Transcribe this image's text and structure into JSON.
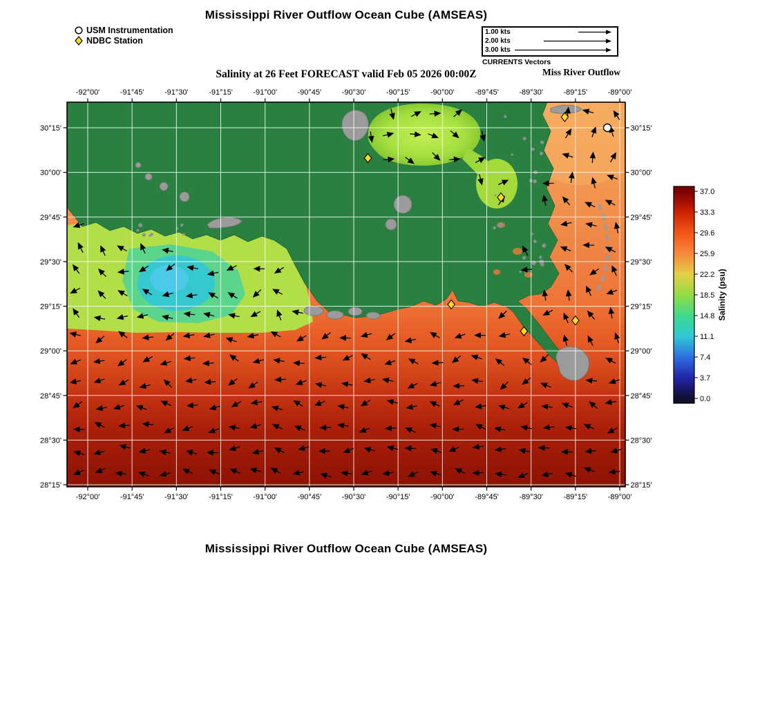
{
  "title": "Mississippi River Outflow Ocean Cube (AMSEAS)",
  "subtitle": "Salinity at 26 Feet FORECAST valid Feb 05 2026 00:00Z",
  "footer_title": "Mississippi River Outflow Ocean Cube (AMSEAS)",
  "marker_legend": {
    "usm": "USM Instrumentation",
    "ndbc": "NDBC Station"
  },
  "vector_legend": {
    "rows": [
      {
        "label": "1.00 kts",
        "len": 48
      },
      {
        "label": "2.00 kts",
        "len": 98
      },
      {
        "label": "3.00 kts",
        "len": 140
      }
    ],
    "caption": "CURRENTS Vectors",
    "annotation": "Miss River Outflow"
  },
  "axes": {
    "x_ticks": [
      "-92°00'",
      "-91°45'",
      "-91°30'",
      "-91°15'",
      "-91°00'",
      "-90°45'",
      "-90°30'",
      "-90°15'",
      "-90°00'",
      "-89°45'",
      "-89°30'",
      "-89°15'",
      "-89°00'"
    ],
    "y_ticks": [
      "30°15'",
      "30°00'",
      "29°45'",
      "29°30'",
      "29°15'",
      "29°00'",
      "28°45'",
      "28°30'",
      "28°15'"
    ]
  },
  "colorbar": {
    "label": "Salinity (psu)",
    "ticks": [
      "37.0",
      "33.3",
      "29.6",
      "25.9",
      "22.2",
      "18.5",
      "14.8",
      "11.1",
      "7.4",
      "3.7",
      "0.0"
    ],
    "colors": [
      "#7c0103",
      "#cc2000",
      "#f25518",
      "#f9883a",
      "#e5cf45",
      "#93dc45",
      "#3ed98c",
      "#2fc9d4",
      "#2e6ee0",
      "#2224a8",
      "#10102e"
    ]
  },
  "map": {
    "colors": {
      "land": "#2a8041",
      "island": "#9b9b9b",
      "ndbc_marker": "#ffd920",
      "usm_marker": "#ffffff"
    }
  },
  "chart_data": {
    "type": "heatmap",
    "title": "Salinity at 26 Feet FORECAST valid Feb 05 2026 00:00Z",
    "xlim": [
      -92.12,
      -88.97
    ],
    "ylim": [
      28.24,
      30.39
    ],
    "x_ticks_deg": [
      -92.0,
      -91.75,
      -91.5,
      -91.25,
      -91.0,
      -90.75,
      -90.5,
      -90.25,
      -90.0,
      -89.75,
      -89.5,
      -89.25,
      -89.0
    ],
    "y_ticks_deg": [
      30.25,
      30.0,
      29.75,
      29.5,
      29.25,
      29.0,
      28.75,
      28.5,
      28.25
    ],
    "colorbar_label": "Salinity (psu)",
    "colorbar_ticks": [
      37.0,
      33.3,
      29.6,
      25.9,
      22.2,
      18.5,
      14.8,
      11.1,
      7.4,
      3.7,
      0.0
    ],
    "value_range_psu": [
      0,
      37
    ],
    "vector_scale_kts": [
      1.0,
      2.0,
      3.0
    ],
    "stations": {
      "ndbc": [
        [
          -89.31,
          30.31
        ],
        [
          -90.42,
          30.08
        ],
        [
          -89.67,
          29.86
        ],
        [
          -89.95,
          29.26
        ],
        [
          -89.54,
          29.11
        ],
        [
          -89.25,
          29.17
        ]
      ],
      "usm": [
        [
          -89.07,
          30.25
        ]
      ]
    }
  }
}
